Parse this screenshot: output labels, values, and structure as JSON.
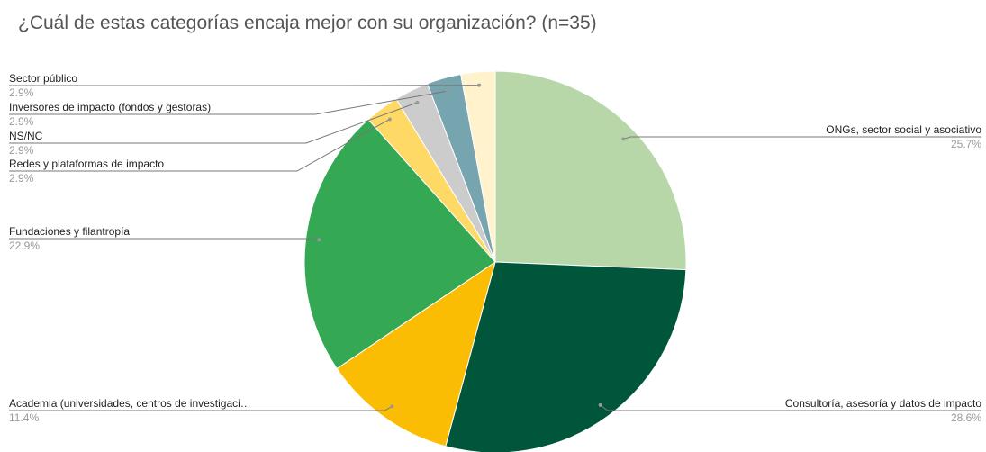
{
  "chart_data": {
    "type": "pie",
    "title": "¿Cuál de estas categorías encaja mejor con su organización? (n=35)",
    "categories": [
      "ONGs, sector social y asociativo",
      "Consultoría, asesoría y datos de impacto",
      "Academia (universidades, centros de investigaci…",
      "Fundaciones y filantropía",
      "Redes y plataformas de impacto",
      "NS/NC",
      "Inversores de impacto (fondos y gestoras)",
      "Sector público"
    ],
    "values": [
      25.7,
      28.6,
      11.4,
      22.9,
      2.9,
      2.9,
      2.9,
      2.9
    ],
    "value_labels": [
      "25.7%",
      "28.6%",
      "11.4%",
      "22.9%",
      "2.9%",
      "2.9%",
      "2.9%",
      "2.9%"
    ],
    "colors": [
      "#b7d7a8",
      "#00563b",
      "#fbbc04",
      "#34a853",
      "#ffd966",
      "#cccccc",
      "#76a5af",
      "#fff2cc"
    ]
  }
}
